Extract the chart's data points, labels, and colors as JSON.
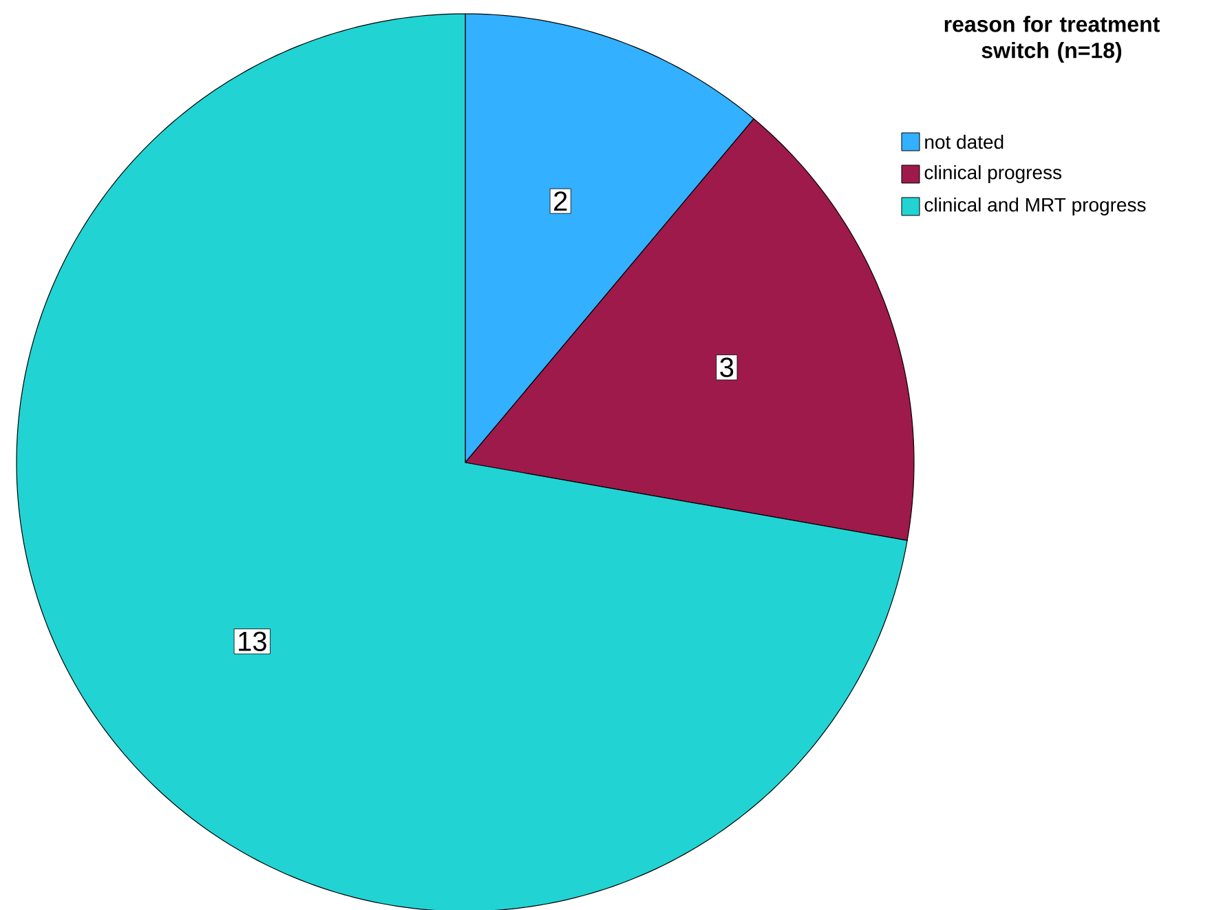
{
  "chart_data": {
    "type": "pie",
    "legend_title": "reason for treatment switch (n=18)",
    "categories": [
      "not dated",
      "clinical progress",
      "clinical and MRT progress"
    ],
    "values": [
      2,
      3,
      13
    ],
    "colors": [
      "#33b0ff",
      "#9e1a4a",
      "#22d3d3"
    ],
    "data_labels": true,
    "legend": "top right"
  }
}
